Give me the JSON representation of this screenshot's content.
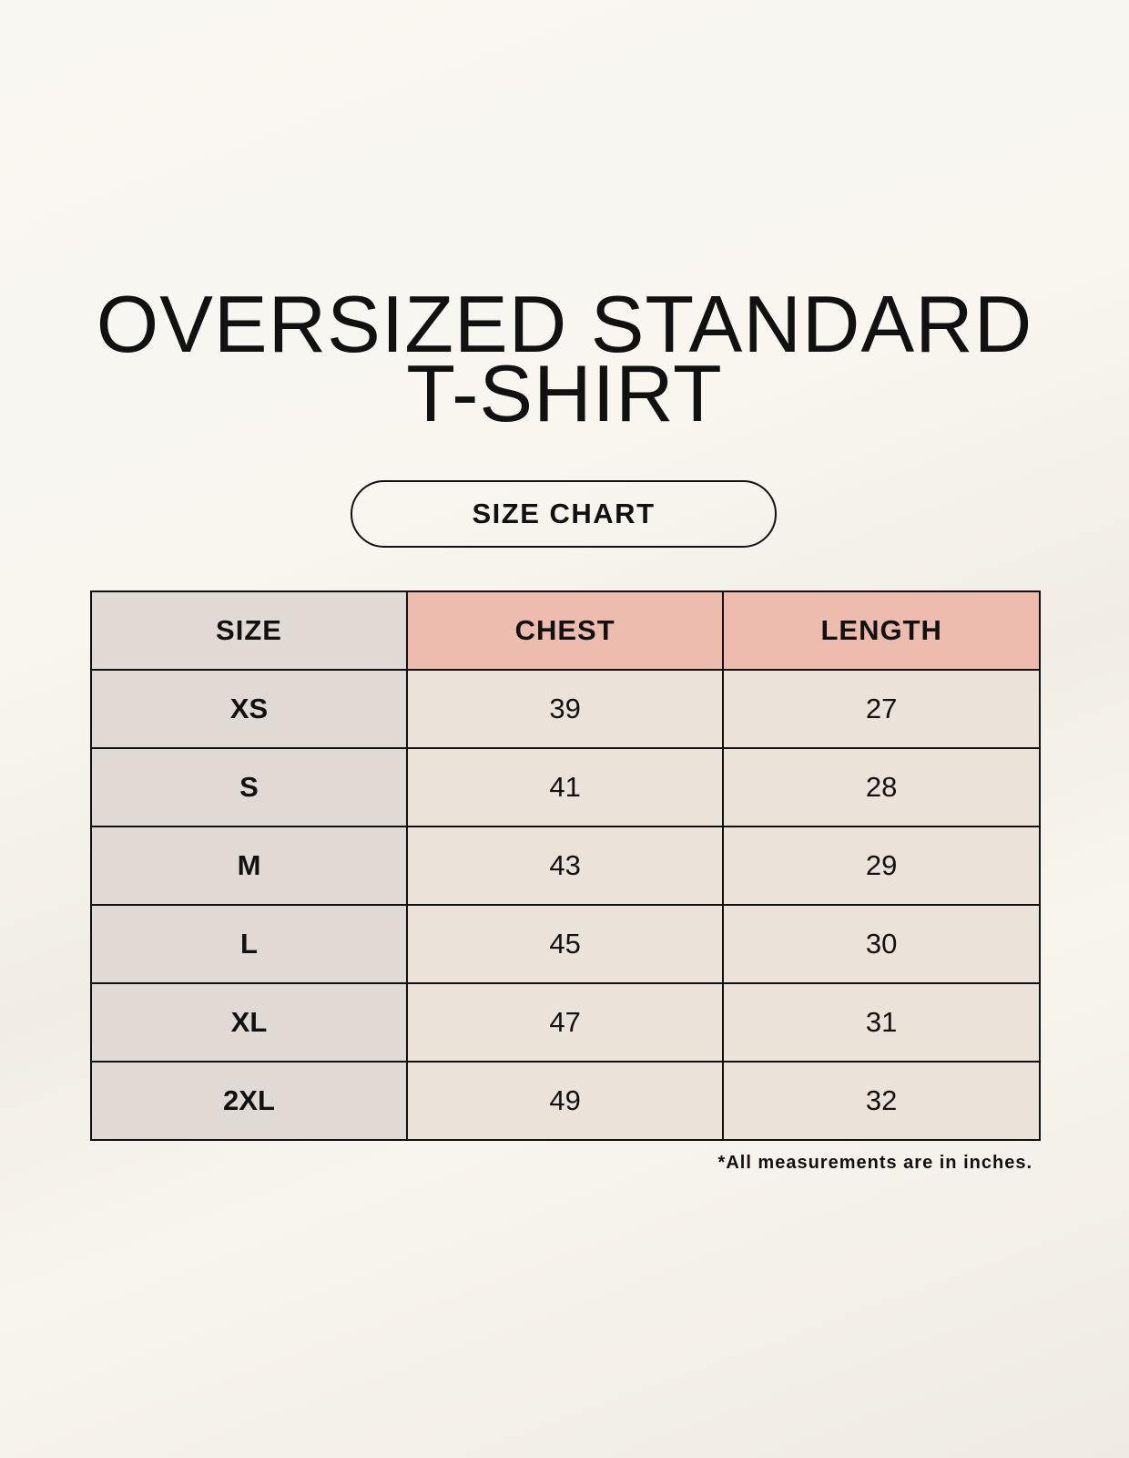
{
  "title": {
    "line1": "OVERSIZED STANDARD",
    "line2": "T-SHIRT"
  },
  "subtitle": "SIZE CHART",
  "table": {
    "headers": [
      "SIZE",
      "CHEST",
      "LENGTH"
    ],
    "rows": [
      [
        "XS",
        "39",
        "27"
      ],
      [
        "S",
        "41",
        "28"
      ],
      [
        "M",
        "43",
        "29"
      ],
      [
        "L",
        "45",
        "30"
      ],
      [
        "XL",
        "47",
        "31"
      ],
      [
        "2XL",
        "49",
        "32"
      ]
    ]
  },
  "footnote": "*All measurements are in inches.",
  "colors": {
    "size_column": "#e1d9d4",
    "header_accent": "#eebcae",
    "cell_bg": "#ebe3d9"
  }
}
